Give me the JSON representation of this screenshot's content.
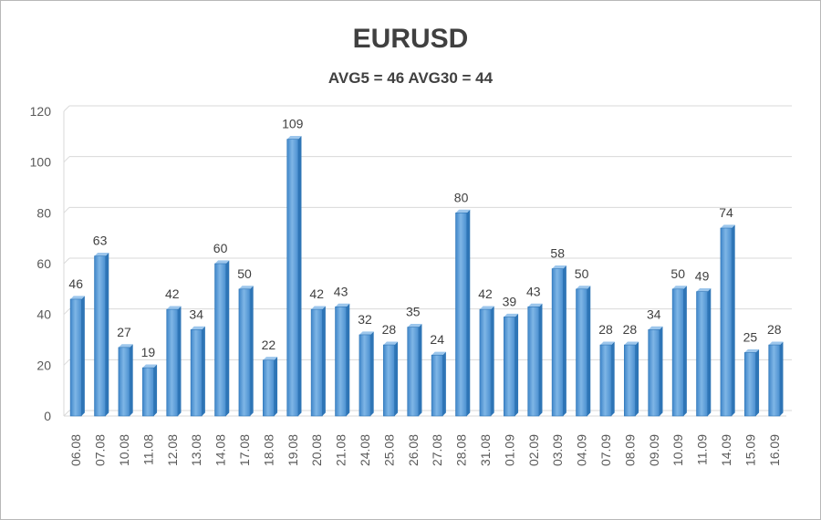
{
  "chart_data": {
    "type": "bar",
    "title": "EURUSD",
    "subtitle": "AVG5 = 46 AVG30 = 44",
    "xlabel": "",
    "ylabel": "",
    "ylim": [
      0,
      120
    ],
    "yticks": [
      0,
      20,
      40,
      60,
      80,
      100,
      120
    ],
    "grid": true,
    "categories": [
      "06.08",
      "07.08",
      "10.08",
      "11.08",
      "12.08",
      "13.08",
      "14.08",
      "17.08",
      "18.08",
      "19.08",
      "20.08",
      "21.08",
      "24.08",
      "25.08",
      "26.08",
      "27.08",
      "28.08",
      "31.08",
      "01.09",
      "02.09",
      "03.09",
      "04.09",
      "07.09",
      "08.09",
      "09.09",
      "10.09",
      "11.09",
      "14.09",
      "15.09",
      "16.09"
    ],
    "values": [
      46,
      63,
      27,
      19,
      42,
      34,
      60,
      50,
      22,
      109,
      42,
      43,
      32,
      28,
      35,
      24,
      80,
      42,
      39,
      43,
      58,
      50,
      28,
      28,
      34,
      50,
      49,
      74,
      25,
      28
    ],
    "bar_color": "#5b9bd5",
    "bar_dark_color": "#2e75b6"
  }
}
